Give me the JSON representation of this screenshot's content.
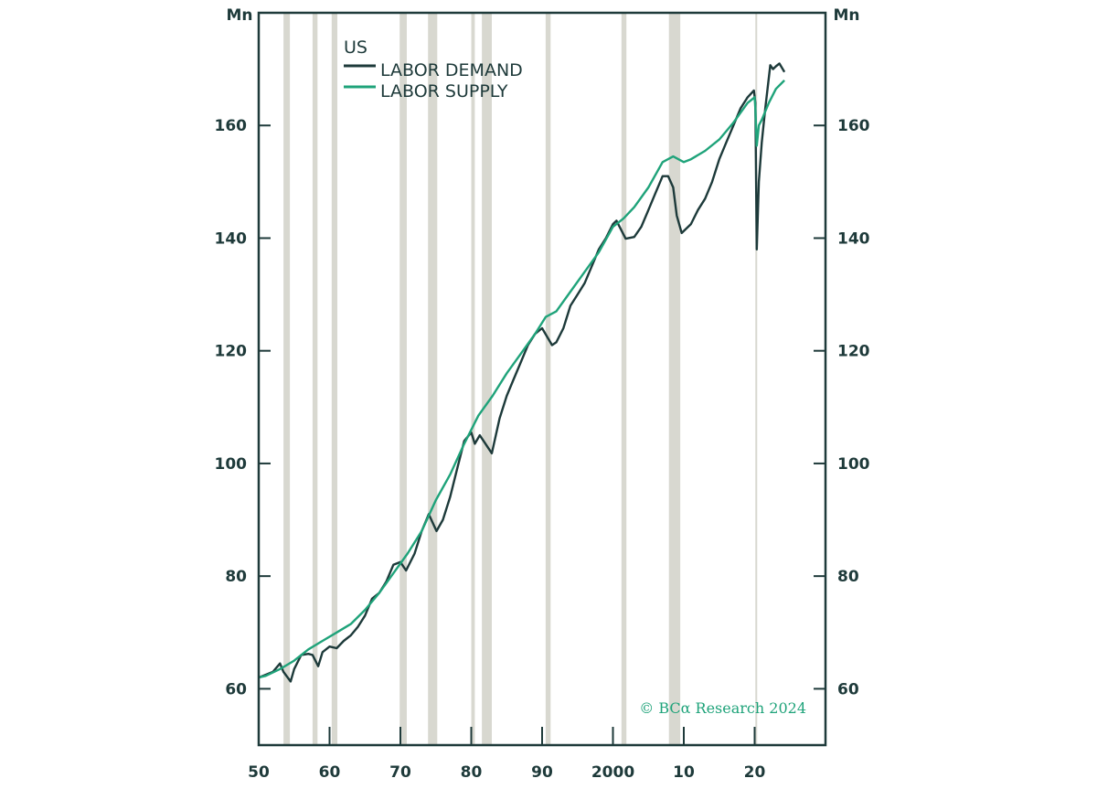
{
  "chart_data": {
    "type": "line",
    "title": "",
    "xlabel": "",
    "ylabel_left": "Mn",
    "ylabel_right": "Mn",
    "xlim": [
      1950,
      2030
    ],
    "ylim": [
      50,
      180
    ],
    "grid": false,
    "legend_title": "US",
    "legend_position": "top-left",
    "x_ticks": [
      {
        "value": 1950,
        "label": "50"
      },
      {
        "value": 1960,
        "label": "60"
      },
      {
        "value": 1970,
        "label": "70"
      },
      {
        "value": 1980,
        "label": "80"
      },
      {
        "value": 1990,
        "label": "90"
      },
      {
        "value": 2000,
        "label": "2000"
      },
      {
        "value": 2010,
        "label": "10"
      },
      {
        "value": 2020,
        "label": "20"
      }
    ],
    "y_ticks": [
      {
        "value": 60,
        "label": "60"
      },
      {
        "value": 80,
        "label": "80"
      },
      {
        "value": 100,
        "label": "100"
      },
      {
        "value": 120,
        "label": "120"
      },
      {
        "value": 140,
        "label": "140"
      },
      {
        "value": 160,
        "label": "160"
      }
    ],
    "recessions": [
      [
        1953.5,
        1954.4
      ],
      [
        1957.6,
        1958.3
      ],
      [
        1960.3,
        1961.1
      ],
      [
        1969.9,
        1970.9
      ],
      [
        1973.9,
        1975.2
      ],
      [
        1980.0,
        1980.5
      ],
      [
        1981.5,
        1982.9
      ],
      [
        1990.5,
        1991.2
      ],
      [
        2001.2,
        2001.9
      ],
      [
        2007.9,
        2009.5
      ],
      [
        2020.1,
        2020.3
      ]
    ],
    "series": [
      {
        "name": "LABOR DEMAND",
        "color": "#1d3a3a",
        "x": [
          1950,
          1951,
          1952,
          1953,
          1953.5,
          1954.5,
          1955,
          1956,
          1957,
          1957.6,
          1958.4,
          1959,
          1960,
          1961,
          1962,
          1963,
          1964,
          1965,
          1966,
          1967,
          1968,
          1969,
          1970,
          1970.8,
          1972,
          1973,
          1974,
          1975.1,
          1976,
          1977,
          1978,
          1979,
          1980,
          1980.5,
          1981.2,
          1982.9,
          1984,
          1985,
          1986,
          1987,
          1988,
          1989,
          1990,
          1991.4,
          1992,
          1993,
          1994,
          1995,
          1996,
          1997,
          1998,
          1999,
          2000,
          2000.5,
          2001.8,
          2003,
          2004,
          2005,
          2006,
          2007,
          2007.8,
          2008.5,
          2009,
          2009.7,
          2011,
          2012,
          2013,
          2014,
          2015,
          2016,
          2017,
          2018,
          2019,
          2019.9,
          2020.1,
          2020.3,
          2020.6,
          2021,
          2021.5,
          2022.2,
          2022.6,
          2023,
          2023.5,
          2024.2
        ],
        "y": [
          62,
          62.5,
          63,
          64.5,
          63,
          61.3,
          63.5,
          66,
          66.2,
          66,
          64,
          66.5,
          67.5,
          67.2,
          68.5,
          69.5,
          71,
          73,
          76,
          77,
          79,
          82,
          82.5,
          81,
          84,
          88,
          91,
          88,
          90,
          94,
          99,
          104,
          105.5,
          103.5,
          105,
          101.8,
          108,
          112,
          115,
          118,
          121,
          123,
          124,
          121,
          121.5,
          124,
          128,
          130,
          132,
          135,
          138,
          140,
          142.5,
          143.1,
          139.9,
          140.2,
          142,
          145,
          148,
          151,
          151,
          149,
          144,
          140.9,
          142.5,
          145,
          147,
          150,
          154,
          157,
          160,
          163,
          165,
          166.2,
          164,
          138,
          150,
          157,
          163,
          170.7,
          170,
          170.5,
          171,
          169.5
        ]
      },
      {
        "name": "LABOR SUPPLY",
        "color": "#1fa37a",
        "x": [
          1950,
          1951,
          1953,
          1955,
          1957,
          1959,
          1961,
          1963,
          1965,
          1967,
          1969,
          1971,
          1973,
          1975,
          1977,
          1979,
          1981,
          1983,
          1985,
          1987,
          1989,
          1990.5,
          1992,
          1994,
          1996,
          1998,
          2000,
          2001.5,
          2003,
          2005,
          2007,
          2008.5,
          2010,
          2011,
          2013,
          2015,
          2017,
          2019,
          2020,
          2020.1,
          2020.3,
          2020.6,
          2021,
          2022,
          2023,
          2024.2
        ],
        "y": [
          62,
          62.3,
          63.5,
          65,
          67,
          68.5,
          70,
          71.5,
          74,
          77,
          80.5,
          84,
          88,
          93.5,
          98,
          103.5,
          108.5,
          112,
          116,
          119.5,
          123,
          126,
          127,
          130.5,
          134,
          137.5,
          142,
          143.5,
          145.5,
          149,
          153.5,
          154.5,
          153.5,
          154,
          155.5,
          157.5,
          160.5,
          164,
          165,
          163,
          156.4,
          160,
          161,
          164,
          166.5,
          168
        ]
      }
    ]
  },
  "copyright": "© BCα Research 2024"
}
